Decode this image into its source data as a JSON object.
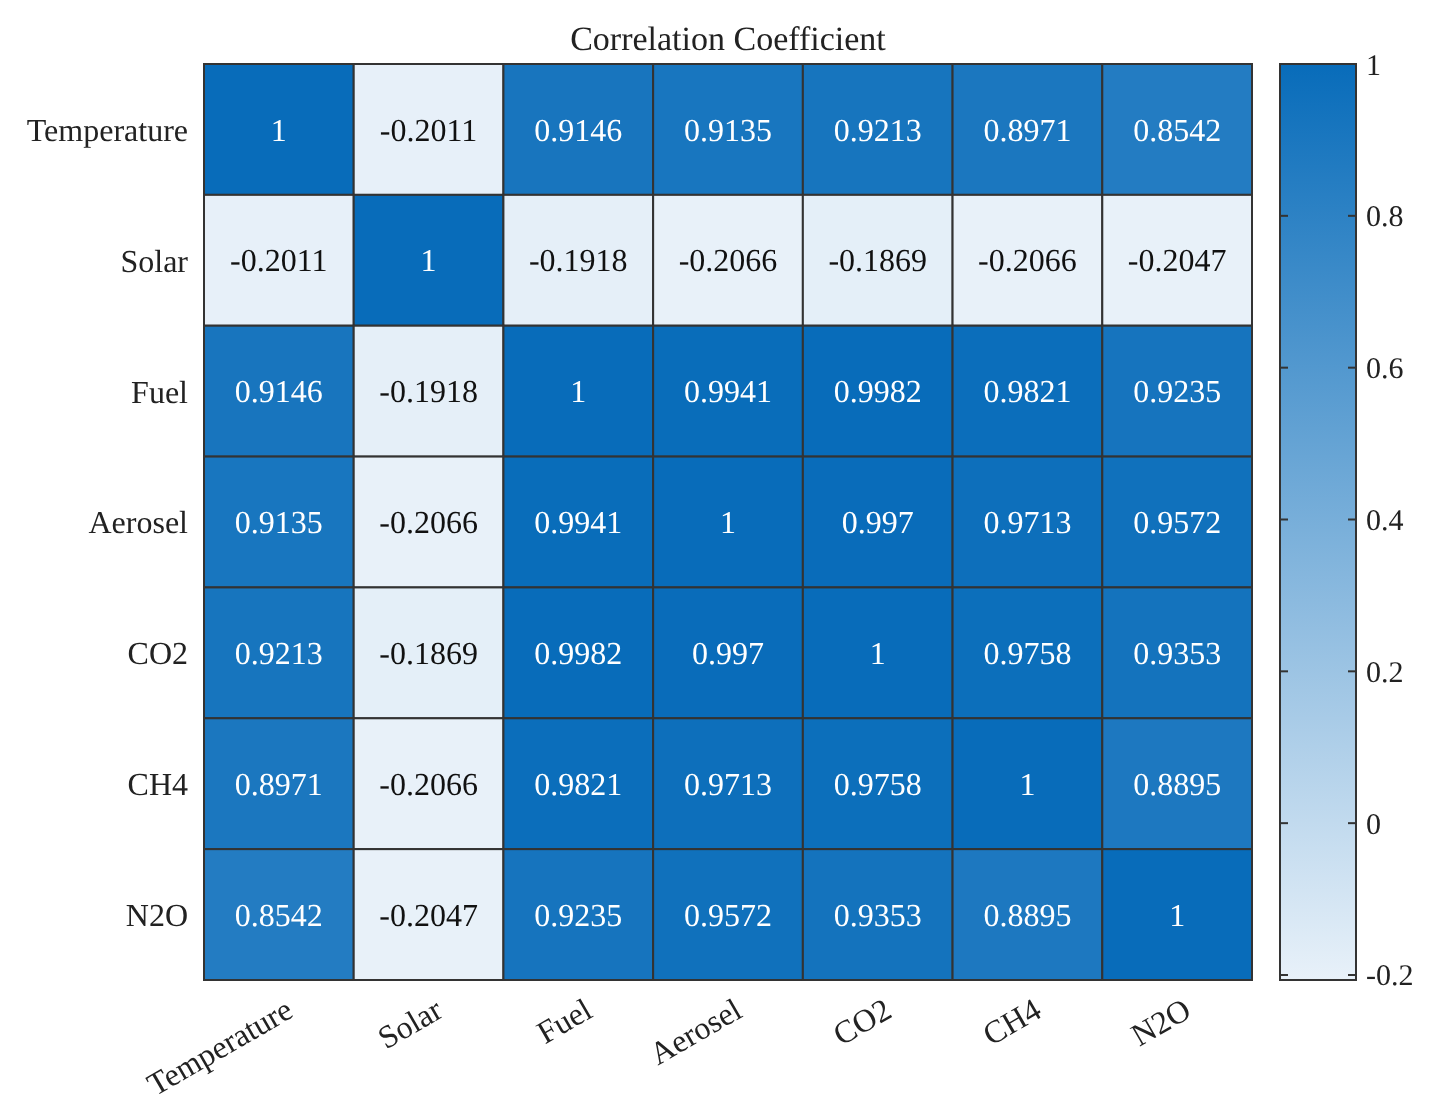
{
  "chart_data": {
    "type": "heatmap",
    "title": "Correlation Coefficient",
    "categories": [
      "Temperature",
      "Solar",
      "Fuel",
      "Aerosel",
      "CO2",
      "CH4",
      "N2O"
    ],
    "y_categories": [
      "Temperature",
      "Solar",
      "Fuel",
      "Aerosel",
      "CO2",
      "CH4",
      "N2O"
    ],
    "cells": [
      [
        1,
        -0.2011,
        0.9146,
        0.9135,
        0.9213,
        0.8971,
        0.8542
      ],
      [
        -0.2011,
        1,
        -0.1918,
        -0.2066,
        -0.1869,
        -0.2066,
        -0.2047
      ],
      [
        0.9146,
        -0.1918,
        1,
        0.9941,
        0.9982,
        0.9821,
        0.9235
      ],
      [
        0.9135,
        -0.2066,
        0.9941,
        1,
        0.997,
        0.9713,
        0.9572
      ],
      [
        0.9213,
        -0.1869,
        0.9982,
        0.997,
        1,
        0.9758,
        0.9353
      ],
      [
        0.8971,
        -0.2066,
        0.9821,
        0.9713,
        0.9758,
        1,
        0.8895
      ],
      [
        0.8542,
        -0.2047,
        0.9235,
        0.9572,
        0.9353,
        0.8895,
        1
      ]
    ],
    "clim": [
      -0.2066,
      1
    ],
    "data_labels": true,
    "cticks": [
      -0.2,
      0,
      0.2,
      0.4,
      0.6,
      0.8,
      1
    ]
  }
}
